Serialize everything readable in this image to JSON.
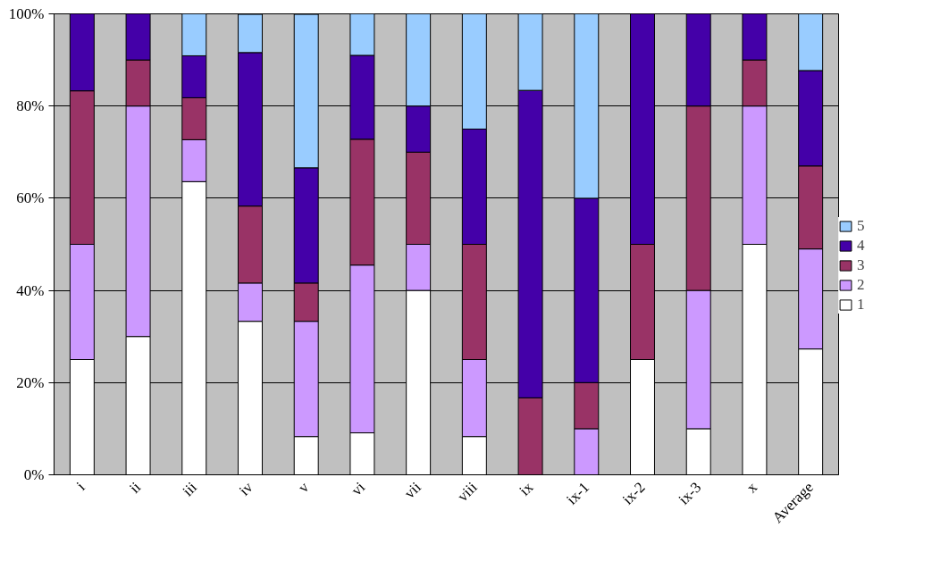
{
  "chart_data": {
    "type": "bar",
    "stacked": true,
    "categories": [
      "i",
      "ii",
      "iii",
      "iv",
      "v",
      "vi",
      "vii",
      "viii",
      "ix",
      "ix-1",
      "ix-2",
      "ix-3",
      "x",
      "Average"
    ],
    "series": [
      {
        "name": "1",
        "color": "#ffffff",
        "values": [
          25,
          30,
          63.6,
          33.3,
          8.3,
          9.1,
          40,
          8.3,
          0,
          0,
          25,
          10,
          50,
          27.3
        ]
      },
      {
        "name": "2",
        "color": "#cc99ff",
        "values": [
          25,
          50,
          9.1,
          8.3,
          25,
          36.4,
          10,
          16.7,
          0,
          10,
          0,
          30,
          30,
          21.7
        ]
      },
      {
        "name": "3",
        "color": "#993366",
        "values": [
          33.3,
          10,
          9.1,
          16.7,
          8.3,
          27.3,
          20,
          25,
          16.7,
          10,
          25,
          40,
          10,
          18
        ]
      },
      {
        "name": "4",
        "color": "#4400a8",
        "values": [
          16.7,
          10,
          9.1,
          33.3,
          25,
          18.2,
          10,
          25,
          66.7,
          40,
          50,
          20,
          10,
          20.7
        ]
      },
      {
        "name": "5",
        "color": "#99ccff",
        "values": [
          0,
          0,
          9.1,
          8.3,
          33.3,
          9.1,
          20,
          25,
          16.7,
          40,
          0,
          0,
          0,
          12.3
        ]
      }
    ],
    "ylim": [
      0,
      100
    ],
    "yticks": [
      {
        "value": 0,
        "label": "0%"
      },
      {
        "value": 20,
        "label": "20%"
      },
      {
        "value": 40,
        "label": "40%"
      },
      {
        "value": 60,
        "label": "60%"
      },
      {
        "value": 80,
        "label": "80%"
      },
      {
        "value": 100,
        "label": "100%"
      }
    ],
    "grid": "y",
    "legend": "right"
  }
}
